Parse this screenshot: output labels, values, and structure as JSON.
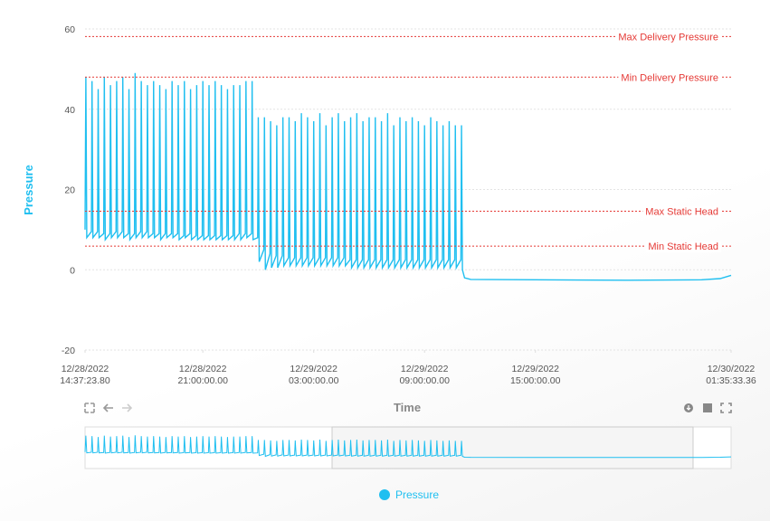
{
  "chart_data": {
    "type": "line",
    "y_label": "Pressure",
    "x_label": "Time",
    "ylim": [
      -20,
      60
    ],
    "yticks": [
      -20,
      0,
      20,
      40,
      60
    ],
    "grid": true,
    "xlim": [
      "2022-12-28T14:37:23.800",
      "2022-12-30T01:35:33.360"
    ],
    "xticks": [
      {
        "value": "2022-12-28T14:37:23.800",
        "label": [
          "12/28/2022",
          "14:37:23.80"
        ]
      },
      {
        "value": "2022-12-28T21:00:00",
        "label": [
          "12/28/2022",
          "21:00:00.00"
        ]
      },
      {
        "value": "2022-12-29T03:00:00",
        "label": [
          "12/29/2022",
          "03:00:00.00"
        ]
      },
      {
        "value": "2022-12-29T09:00:00",
        "label": [
          "12/29/2022",
          "09:00:00.00"
        ]
      },
      {
        "value": "2022-12-29T15:00:00",
        "label": [
          "12/29/2022",
          "15:00:00.00"
        ]
      },
      {
        "value": "2022-12-30T01:35:33.360",
        "label": [
          "12/30/2022",
          "01:35:33.36"
        ]
      }
    ],
    "reference_lines": [
      {
        "label": "Max Delivery Pressure",
        "value": 58.1,
        "color": "#e53935"
      },
      {
        "label": "Min Delivery Pressure",
        "value": 48,
        "color": "#e53935"
      },
      {
        "label": "Max Static Head",
        "value": 14.6,
        "color": "#e53935"
      },
      {
        "label": "Min Static Head",
        "value": 5.9,
        "color": "#e53935"
      }
    ],
    "x": [
      "2022-12-28T14:37:23.800",
      "2022-12-28T14:40",
      "2022-12-28T14:43",
      "2022-12-28T14:58",
      "2022-12-28T15:00",
      "2022-12-28T15:03",
      "2022-12-28T15:18",
      "2022-12-28T15:20",
      "2022-12-28T15:23",
      "2022-12-28T15:38",
      "2022-12-28T15:40",
      "2022-12-28T15:43",
      "2022-12-28T15:58",
      "2022-12-28T16:00",
      "2022-12-28T16:03",
      "2022-12-28T16:18",
      "2022-12-28T16:20",
      "2022-12-28T16:23",
      "2022-12-28T16:38",
      "2022-12-28T16:40",
      "2022-12-28T16:43",
      "2022-12-28T16:58",
      "2022-12-28T17:00",
      "2022-12-28T17:03",
      "2022-12-28T17:18",
      "2022-12-28T17:20",
      "2022-12-28T17:23",
      "2022-12-28T17:38",
      "2022-12-28T17:40",
      "2022-12-28T17:43",
      "2022-12-28T17:58",
      "2022-12-28T18:00",
      "2022-12-28T18:03",
      "2022-12-28T18:18",
      "2022-12-28T18:20",
      "2022-12-28T18:23",
      "2022-12-28T18:38",
      "2022-12-28T18:40",
      "2022-12-28T18:43",
      "2022-12-28T18:58",
      "2022-12-28T19:00",
      "2022-12-28T19:03",
      "2022-12-28T19:18",
      "2022-12-28T19:20",
      "2022-12-28T19:23",
      "2022-12-28T19:38",
      "2022-12-28T19:40",
      "2022-12-28T19:43",
      "2022-12-28T19:58",
      "2022-12-28T20:00",
      "2022-12-28T20:03",
      "2022-12-28T20:18",
      "2022-12-28T20:20",
      "2022-12-28T20:23",
      "2022-12-28T20:38",
      "2022-12-28T20:40",
      "2022-12-28T20:43",
      "2022-12-28T20:58",
      "2022-12-28T21:00",
      "2022-12-28T21:03",
      "2022-12-28T21:18",
      "2022-12-28T21:20",
      "2022-12-28T21:23",
      "2022-12-28T21:38",
      "2022-12-28T21:40",
      "2022-12-28T21:43",
      "2022-12-28T21:58",
      "2022-12-28T22:00",
      "2022-12-28T22:03",
      "2022-12-28T22:18",
      "2022-12-28T22:20",
      "2022-12-28T22:23",
      "2022-12-28T22:38",
      "2022-12-28T22:40",
      "2022-12-28T22:43",
      "2022-12-28T22:58",
      "2022-12-28T23:00",
      "2022-12-28T23:03",
      "2022-12-28T23:18",
      "2022-12-28T23:20",
      "2022-12-28T23:23",
      "2022-12-28T23:38",
      "2022-12-28T23:40",
      "2022-12-28T23:43",
      "2022-12-28T23:58",
      "2022-12-29T00:00",
      "2022-12-29T00:03",
      "2022-12-29T00:18",
      "2022-12-29T00:20",
      "2022-12-29T00:23",
      "2022-12-29T00:38",
      "2022-12-29T00:40",
      "2022-12-29T00:43",
      "2022-12-29T00:58",
      "2022-12-29T01:00",
      "2022-12-29T01:03",
      "2022-12-29T01:18",
      "2022-12-29T01:20",
      "2022-12-29T01:23",
      "2022-12-29T01:38",
      "2022-12-29T01:40",
      "2022-12-29T01:43",
      "2022-12-29T01:58",
      "2022-12-29T02:00",
      "2022-12-29T02:03",
      "2022-12-29T02:18",
      "2022-12-29T02:20",
      "2022-12-29T02:23",
      "2022-12-29T02:38",
      "2022-12-29T02:40",
      "2022-12-29T02:43",
      "2022-12-29T02:58",
      "2022-12-29T03:00",
      "2022-12-29T03:03",
      "2022-12-29T03:18",
      "2022-12-29T03:20",
      "2022-12-29T03:23",
      "2022-12-29T03:38",
      "2022-12-29T03:40",
      "2022-12-29T03:43",
      "2022-12-29T03:58",
      "2022-12-29T04:00",
      "2022-12-29T04:03",
      "2022-12-29T04:18",
      "2022-12-29T04:20",
      "2022-12-29T04:23",
      "2022-12-29T04:38",
      "2022-12-29T04:40",
      "2022-12-29T04:43",
      "2022-12-29T04:58",
      "2022-12-29T05:00",
      "2022-12-29T05:03",
      "2022-12-29T05:18",
      "2022-12-29T05:20",
      "2022-12-29T05:23",
      "2022-12-29T05:38",
      "2022-12-29T05:40",
      "2022-12-29T05:43",
      "2022-12-29T05:58",
      "2022-12-29T06:00",
      "2022-12-29T06:03",
      "2022-12-29T06:18",
      "2022-12-29T06:20",
      "2022-12-29T06:23",
      "2022-12-29T06:38",
      "2022-12-29T06:40",
      "2022-12-29T06:43",
      "2022-12-29T06:58",
      "2022-12-29T07:00",
      "2022-12-29T07:03",
      "2022-12-29T07:18",
      "2022-12-29T07:20",
      "2022-12-29T07:23",
      "2022-12-29T07:38",
      "2022-12-29T07:40",
      "2022-12-29T07:43",
      "2022-12-29T07:58",
      "2022-12-29T08:00",
      "2022-12-29T08:03",
      "2022-12-29T08:18",
      "2022-12-29T08:20",
      "2022-12-29T08:23",
      "2022-12-29T08:38",
      "2022-12-29T08:40",
      "2022-12-29T08:43",
      "2022-12-29T08:58",
      "2022-12-29T09:00",
      "2022-12-29T09:03",
      "2022-12-29T09:18",
      "2022-12-29T09:20",
      "2022-12-29T09:23",
      "2022-12-29T09:38",
      "2022-12-29T09:40",
      "2022-12-29T09:43",
      "2022-12-29T09:58",
      "2022-12-29T10:00",
      "2022-12-29T10:03",
      "2022-12-29T10:18",
      "2022-12-29T10:20",
      "2022-12-29T10:23",
      "2022-12-29T10:38",
      "2022-12-29T10:40",
      "2022-12-29T10:43",
      "2022-12-29T10:58",
      "2022-12-29T11:00",
      "2022-12-29T11:03",
      "2022-12-29T11:10",
      "2022-12-29T11:30",
      "2022-12-29T15:00",
      "2022-12-29T20:00",
      "2022-12-30T00:00",
      "2022-12-30T01:00",
      "2022-12-30T01:35:33.360"
    ],
    "series": [
      {
        "name": "Pressure",
        "color": "#1fbff0",
        "values": [
          10,
          48,
          8,
          9.5,
          47,
          8,
          9.5,
          45,
          8,
          9,
          48,
          7.5,
          9,
          46,
          8,
          9.5,
          47,
          8,
          9.5,
          48,
          8,
          9,
          45,
          7.5,
          9,
          49,
          8,
          9.5,
          47,
          8,
          9.5,
          46,
          8,
          9,
          47,
          8,
          9,
          46,
          7.5,
          9,
          45,
          8,
          9,
          47,
          8,
          9,
          46,
          7.5,
          8.5,
          47,
          8,
          9,
          45,
          7.5,
          8.5,
          46,
          7.5,
          8.5,
          47,
          7.5,
          8.5,
          46,
          7.5,
          8.5,
          47,
          7.5,
          8.5,
          46,
          7.5,
          8.5,
          45,
          7.5,
          8.5,
          46,
          7.5,
          9,
          46,
          7.5,
          9,
          47,
          8,
          9,
          47,
          7.5,
          8,
          38,
          2,
          5,
          38,
          0,
          4,
          37,
          0.5,
          3.5,
          36,
          0.5,
          3.5,
          38,
          1,
          3,
          38,
          1,
          3,
          37,
          1,
          3,
          39,
          1,
          3,
          38,
          1,
          3,
          37,
          1,
          3,
          39,
          1,
          3,
          36,
          1,
          3,
          38,
          1,
          3,
          39,
          1,
          3,
          37,
          1,
          2.5,
          38,
          0.5,
          2.5,
          39,
          0.5,
          2.5,
          37,
          0.5,
          2.5,
          38,
          0.5,
          2.5,
          38,
          0.5,
          2.5,
          37,
          0.5,
          2.5,
          39,
          0.5,
          2.5,
          36,
          0.5,
          2.5,
          38,
          0.5,
          2.5,
          37,
          0.5,
          2.5,
          38,
          0.5,
          2.5,
          37,
          0.5,
          2.5,
          36,
          0.5,
          2.5,
          38,
          0.5,
          2.5,
          37,
          0.5,
          2.5,
          36,
          0.5,
          2.5,
          37,
          0.5,
          2.5,
          36,
          0.5,
          2.5,
          36,
          0,
          -2,
          -2.4,
          -2.5,
          -2.6,
          -2.5,
          -2.2,
          -1.4
        ]
      }
    ]
  }
}
